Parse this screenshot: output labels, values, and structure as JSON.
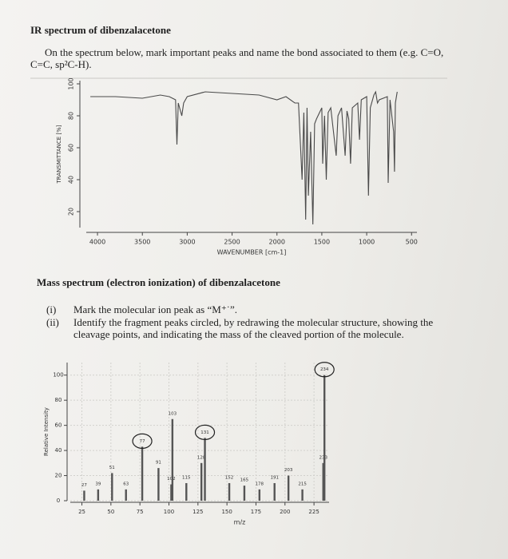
{
  "title": "IR spectrum of dibenzalacetone",
  "instructions": "On the spectrum below, mark important peaks and name the bond associated to them (e.g. C=O, C=C, sp²C-H).",
  "section_title": "Mass spectrum (electron ionization) of dibenzalacetone",
  "items": [
    {
      "marker": "(i)",
      "text": "Mark the molecular ion peak as “M⁺˙”."
    },
    {
      "marker": "(ii)",
      "text": "Identify the fragment peaks circled, by redrawing the molecular structure, showing the cleavage points, and indicating the mass of the cleaved portion of the molecule."
    }
  ],
  "chart_data": [
    {
      "type": "line",
      "xlabel": "WAVENUMBER [cm-1]",
      "ylabel": "TRANSMITTANCE [%]",
      "color": "#4a4a4a",
      "x": [
        4080,
        3800,
        3500,
        3300,
        3200,
        3130,
        3115,
        3100,
        3060,
        3040,
        3000,
        2800,
        2500,
        2200,
        2000,
        1900,
        1800,
        1760,
        1720,
        1700,
        1680,
        1665,
        1650,
        1625,
        1600,
        1580,
        1560,
        1500,
        1490,
        1470,
        1450,
        1430,
        1400,
        1340,
        1320,
        1280,
        1240,
        1220,
        1200,
        1180,
        1160,
        1100,
        1080,
        1060,
        1000,
        980,
        960,
        920,
        900,
        880,
        860,
        770,
        760,
        740,
        700,
        690,
        680,
        660
      ],
      "values": [
        92,
        92,
        91,
        93,
        92,
        90,
        62,
        88,
        80,
        88,
        92,
        95,
        94,
        93,
        90,
        92,
        88,
        88,
        40,
        82,
        15,
        85,
        30,
        70,
        12,
        75,
        78,
        85,
        50,
        80,
        40,
        82,
        85,
        55,
        80,
        85,
        55,
        83,
        78,
        50,
        85,
        88,
        65,
        90,
        92,
        30,
        85,
        93,
        95,
        88,
        90,
        92,
        38,
        90,
        70,
        45,
        88,
        95
      ],
      "xlim": [
        4125,
        440
      ],
      "ylim": [
        10,
        102
      ],
      "xticks": [
        4000,
        3500,
        3000,
        2500,
        2000,
        1500,
        1000,
        500
      ],
      "yticks": [
        20,
        40,
        60,
        80,
        100
      ]
    },
    {
      "type": "bar",
      "xlabel": "m/z",
      "ylabel": "Relative Intensity",
      "color": "#555555",
      "x": [
        27,
        39,
        51,
        63,
        77,
        91,
        102,
        103,
        115,
        128,
        131,
        152,
        165,
        178,
        191,
        203,
        215,
        233,
        234
      ],
      "values": [
        8,
        9,
        22,
        9,
        43,
        26,
        13,
        65,
        14,
        30,
        50,
        14,
        12,
        9,
        14,
        20,
        9,
        30,
        100
      ],
      "xlim": [
        15,
        238
      ],
      "ylim": [
        0,
        110
      ],
      "xticks": [
        25,
        50,
        75,
        100,
        125,
        150,
        175,
        200,
        225
      ],
      "yticks": [
        0,
        20,
        40,
        60,
        80,
        100
      ],
      "grid": true
    }
  ]
}
